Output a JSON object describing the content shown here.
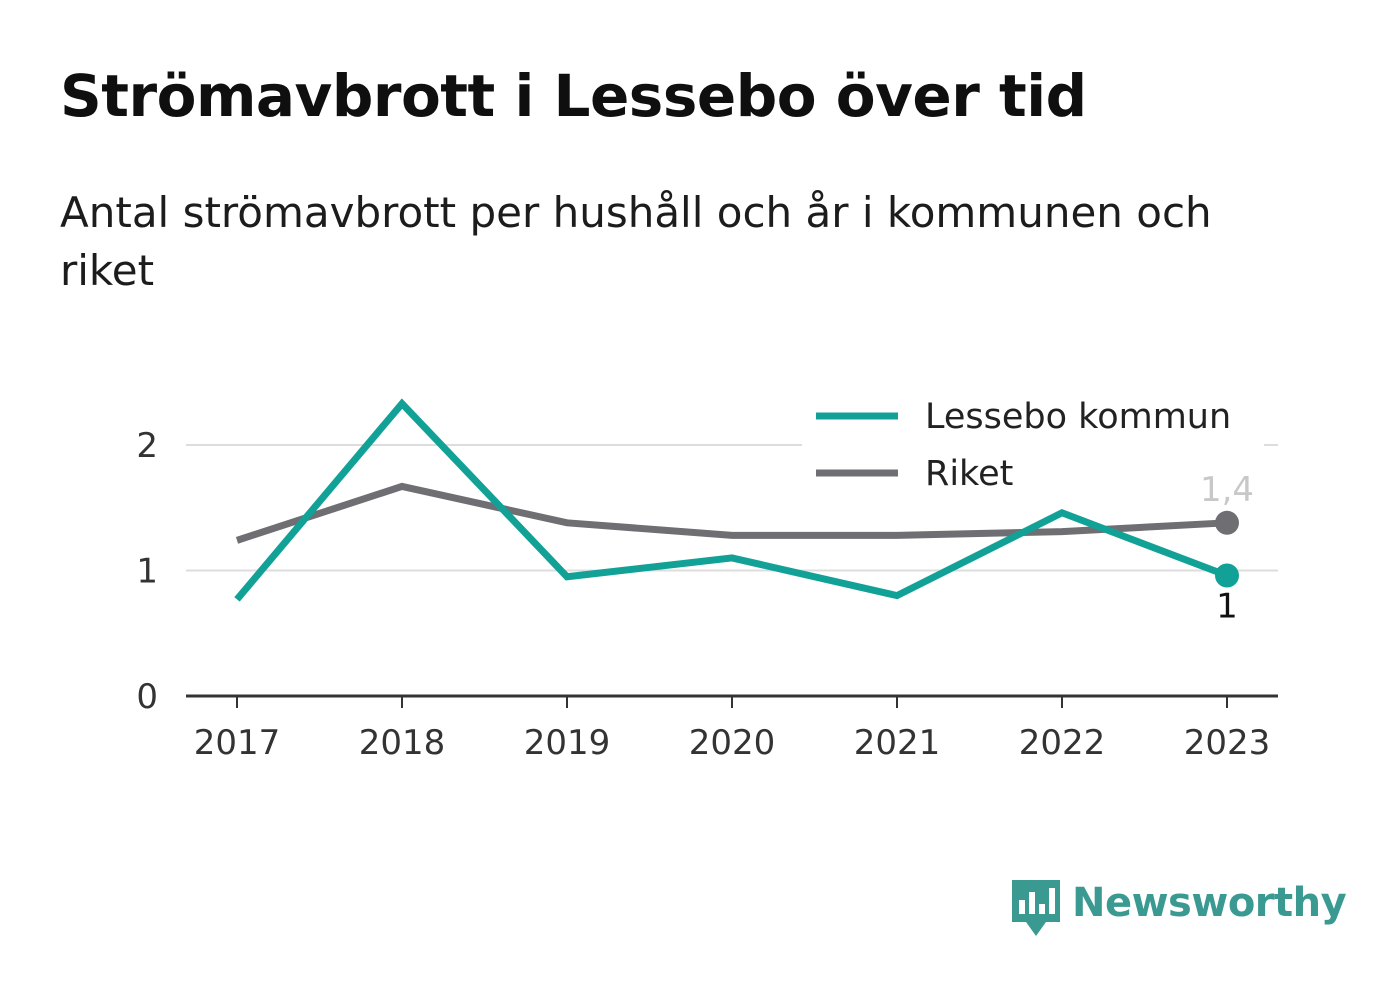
{
  "title": "Strömavbrott i Lessebo över tid",
  "subtitle": "Antal strömavbrott per hushåll och år i kommunen och riket",
  "brand": {
    "name": "Newsworthy",
    "color": "#3a9a92"
  },
  "chart_data": {
    "type": "line",
    "title": "Strömavbrott i Lessebo över tid",
    "subtitle": "Antal strömavbrott per hushåll och år i kommunen och riket",
    "xlabel": "",
    "ylabel": "",
    "x": [
      "2017",
      "2018",
      "2019",
      "2020",
      "2021",
      "2022",
      "2023"
    ],
    "ylim": [
      0,
      2.4
    ],
    "yticks": [
      0,
      1,
      2
    ],
    "grid": true,
    "legend_position": "top-right",
    "series": [
      {
        "name": "Lessebo kommun",
        "color": "#12a197",
        "values": [
          0.77,
          2.33,
          0.95,
          1.1,
          0.8,
          1.46,
          0.96
        ],
        "end_label": "1"
      },
      {
        "name": "Riket",
        "color": "#6f6e73",
        "values": [
          1.24,
          1.67,
          1.38,
          1.28,
          1.28,
          1.31,
          1.38
        ],
        "end_label": "1,4"
      }
    ]
  }
}
